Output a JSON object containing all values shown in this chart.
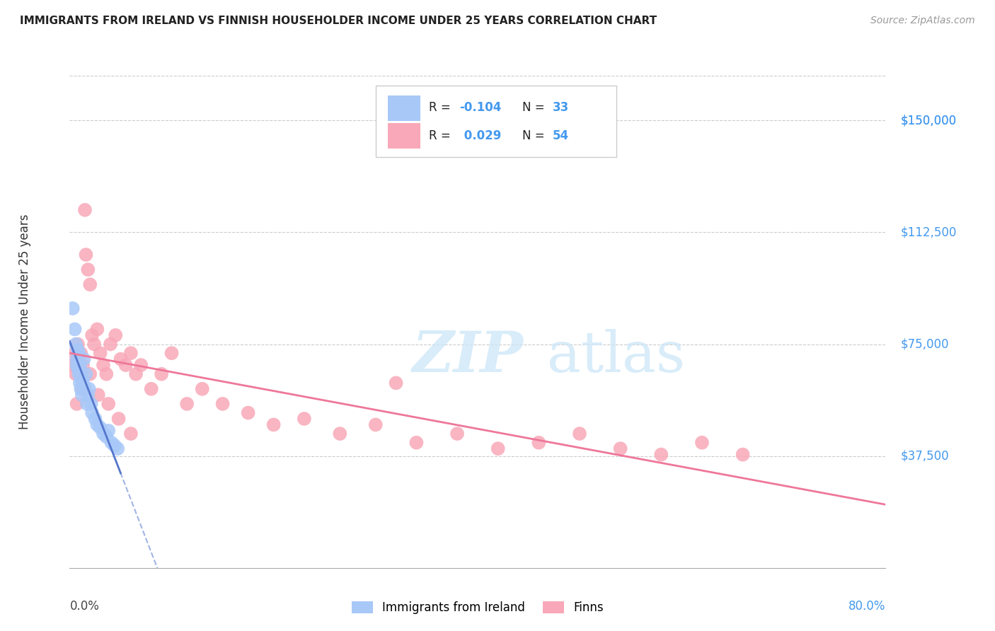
{
  "title": "IMMIGRANTS FROM IRELAND VS FINNISH HOUSEHOLDER INCOME UNDER 25 YEARS CORRELATION CHART",
  "source": "Source: ZipAtlas.com",
  "ylabel": "Householder Income Under 25 years",
  "ytick_labels": [
    "$37,500",
    "$75,000",
    "$112,500",
    "$150,000"
  ],
  "ytick_values": [
    37500,
    75000,
    112500,
    150000
  ],
  "ylim": [
    0,
    165000
  ],
  "xlim": [
    0.0,
    0.8
  ],
  "watermark_zip": "ZIP",
  "watermark_atlas": "atlas",
  "legend_ireland_r": "-0.104",
  "legend_ireland_n": "33",
  "legend_finns_r": "0.029",
  "legend_finns_n": "54",
  "ireland_color": "#a8c8f8",
  "finn_color": "#f8a8b8",
  "ireland_line_color": "#5577cc",
  "finn_line_color": "#ee7799",
  "ireland_scatter_x": [
    0.003,
    0.005,
    0.006,
    0.007,
    0.007,
    0.008,
    0.008,
    0.009,
    0.009,
    0.01,
    0.01,
    0.011,
    0.011,
    0.012,
    0.012,
    0.013,
    0.014,
    0.015,
    0.016,
    0.017,
    0.018,
    0.019,
    0.021,
    0.022,
    0.025,
    0.027,
    0.03,
    0.033,
    0.036,
    0.038,
    0.041,
    0.044,
    0.047
  ],
  "ireland_scatter_y": [
    87000,
    80000,
    75000,
    70000,
    68000,
    73000,
    67000,
    72000,
    65000,
    68000,
    62000,
    65000,
    60000,
    63000,
    58000,
    62000,
    70000,
    60000,
    65000,
    55000,
    58000,
    60000,
    55000,
    52000,
    50000,
    48000,
    47000,
    45000,
    44000,
    46000,
    42000,
    41000,
    40000
  ],
  "finn_scatter_x": [
    0.003,
    0.005,
    0.006,
    0.007,
    0.008,
    0.009,
    0.01,
    0.011,
    0.013,
    0.015,
    0.016,
    0.018,
    0.02,
    0.022,
    0.024,
    0.027,
    0.03,
    0.033,
    0.036,
    0.04,
    0.045,
    0.05,
    0.055,
    0.06,
    0.065,
    0.07,
    0.08,
    0.09,
    0.1,
    0.115,
    0.13,
    0.15,
    0.175,
    0.2,
    0.23,
    0.265,
    0.3,
    0.34,
    0.38,
    0.42,
    0.46,
    0.5,
    0.54,
    0.58,
    0.62,
    0.66,
    0.007,
    0.012,
    0.02,
    0.028,
    0.038,
    0.048,
    0.06,
    0.32
  ],
  "finn_scatter_y": [
    68000,
    72000,
    65000,
    70000,
    75000,
    68000,
    65000,
    72000,
    68000,
    120000,
    105000,
    100000,
    95000,
    78000,
    75000,
    80000,
    72000,
    68000,
    65000,
    75000,
    78000,
    70000,
    68000,
    72000,
    65000,
    68000,
    60000,
    65000,
    72000,
    55000,
    60000,
    55000,
    52000,
    48000,
    50000,
    45000,
    48000,
    42000,
    45000,
    40000,
    42000,
    45000,
    40000,
    38000,
    42000,
    38000,
    55000,
    60000,
    65000,
    58000,
    55000,
    50000,
    45000,
    62000
  ],
  "background_color": "#ffffff",
  "grid_color": "#cccccc"
}
